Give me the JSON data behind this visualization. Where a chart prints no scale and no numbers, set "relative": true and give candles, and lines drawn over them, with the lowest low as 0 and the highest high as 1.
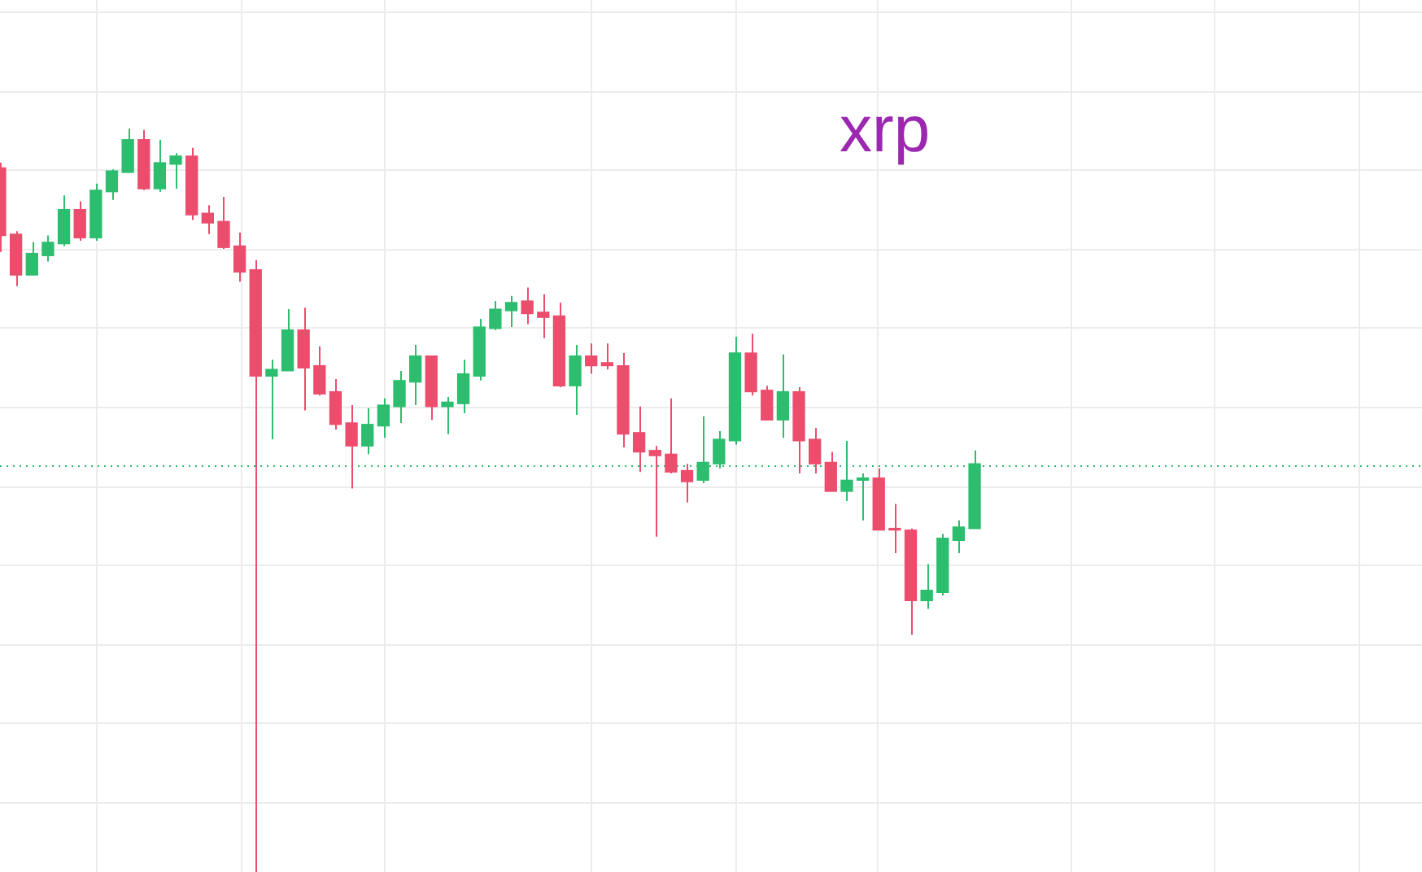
{
  "chart_data": {
    "type": "candlestick",
    "title": "xrp",
    "relative": true,
    "grid": true,
    "legend": false,
    "categories": [
      null,
      null,
      null,
      null,
      null,
      null,
      null,
      null,
      null,
      null,
      null,
      null,
      null,
      null,
      null,
      null,
      null,
      null,
      null,
      null,
      null,
      null,
      null,
      null,
      null,
      null,
      null,
      null,
      null,
      null,
      null,
      null,
      null,
      null,
      null,
      null,
      null,
      null,
      null,
      null,
      null,
      null,
      null,
      null,
      null,
      null,
      null,
      null,
      null,
      null,
      null,
      null,
      null,
      null,
      null,
      null,
      null,
      null,
      null,
      null,
      null,
      null,
      null,
      null,
      null,
      null,
      null,
      null,
      null,
      null,
      null,
      null,
      null,
      null,
      null,
      null,
      null,
      null,
      null,
      null,
      null,
      null,
      null,
      null,
      null,
      null,
      null,
      null,
      null,
      null
    ],
    "ohlc": [
      [
        0.947,
        0.954,
        0.834,
        0.856
      ],
      [
        0.858,
        0.862,
        0.788,
        0.803
      ],
      [
        0.803,
        0.847,
        0.803,
        0.832
      ],
      [
        0.829,
        0.856,
        0.821,
        0.847
      ],
      [
        0.845,
        0.91,
        0.842,
        0.891
      ],
      [
        0.891,
        0.902,
        0.849,
        0.853
      ],
      [
        0.853,
        0.926,
        0.849,
        0.917
      ],
      [
        0.915,
        0.945,
        0.904,
        0.943
      ],
      [
        0.941,
        1,
        0.941,
        0.985
      ],
      [
        0.985,
        0.998,
        0.917,
        0.919
      ],
      [
        0.919,
        0.985,
        0.915,
        0.954
      ],
      [
        0.952,
        0.967,
        0.919,
        0.963
      ],
      [
        0.963,
        0.974,
        0.877,
        0.884
      ],
      [
        0.886,
        0.897,
        0.858,
        0.873
      ],
      [
        0.875,
        0.908,
        0.838,
        0.84
      ],
      [
        0.842,
        0.86,
        0.794,
        0.807
      ],
      [
        0.81,
        0.823,
        0,
        0.667
      ],
      [
        0.667,
        0.689,
        0.582,
        0.676
      ],
      [
        0.674,
        0.757,
        0.674,
        0.729
      ],
      [
        0.729,
        0.759,
        0.621,
        0.678
      ],
      [
        0.681,
        0.707,
        0.641,
        0.643
      ],
      [
        0.646,
        0.663,
        0.595,
        0.602
      ],
      [
        0.604,
        0.628,
        0.516,
        0.573
      ],
      [
        0.573,
        0.624,
        0.562,
        0.602
      ],
      [
        0.6,
        0.637,
        0.584,
        0.628
      ],
      [
        0.626,
        0.674,
        0.604,
        0.661
      ],
      [
        0.659,
        0.709,
        0.628,
        0.694
      ],
      [
        0.694,
        0.694,
        0.608,
        0.626
      ],
      [
        0.626,
        0.639,
        0.589,
        0.632
      ],
      [
        0.63,
        0.689,
        0.617,
        0.67
      ],
      [
        0.667,
        0.744,
        0.661,
        0.733
      ],
      [
        0.731,
        0.768,
        0.729,
        0.757
      ],
      [
        0.755,
        0.775,
        0.733,
        0.766
      ],
      [
        0.768,
        0.786,
        0.737,
        0.751
      ],
      [
        0.753,
        0.777,
        0.718,
        0.746
      ],
      [
        0.748,
        0.766,
        0.652,
        0.654
      ],
      [
        0.654,
        0.709,
        0.615,
        0.694
      ],
      [
        0.694,
        0.711,
        0.67,
        0.681
      ],
      [
        0.685,
        0.711,
        0.676,
        0.681
      ],
      [
        0.681,
        0.698,
        0.571,
        0.589
      ],
      [
        0.591,
        0.626,
        0.538,
        0.565
      ],
      [
        0.567,
        0.573,
        0.451,
        0.56
      ],
      [
        0.562,
        0.637,
        0.536,
        0.538
      ],
      [
        0.54,
        0.549,
        0.497,
        0.525
      ],
      [
        0.527,
        0.613,
        0.523,
        0.551
      ],
      [
        0.549,
        0.593,
        0.543,
        0.582
      ],
      [
        0.58,
        0.72,
        0.575,
        0.698
      ],
      [
        0.698,
        0.724,
        0.641,
        0.646
      ],
      [
        0.648,
        0.654,
        0.608,
        0.608
      ],
      [
        0.608,
        0.696,
        0.584,
        0.646
      ],
      [
        0.646,
        0.652,
        0.536,
        0.58
      ],
      [
        0.582,
        0.597,
        0.536,
        0.549
      ],
      [
        0.551,
        0.565,
        0.512,
        0.512
      ],
      [
        0.512,
        0.58,
        0.499,
        0.527
      ],
      [
        0.527,
        0.536,
        0.473,
        0.53
      ],
      [
        0.53,
        0.543,
        0.46,
        0.46
      ],
      [
        0.462,
        0.495,
        0.429,
        0.46
      ],
      [
        0.46,
        0.462,
        0.319,
        0.365
      ],
      [
        0.365,
        0.414,
        0.354,
        0.379
      ],
      [
        0.376,
        0.455,
        0.372,
        0.449
      ],
      [
        0.446,
        0.473,
        0.429,
        0.464
      ],
      [
        0.462,
        0.567,
        0.462,
        0.549
      ],
      null,
      null,
      null,
      null,
      null,
      null,
      null,
      null,
      null,
      null,
      null,
      null,
      null,
      null,
      null,
      null,
      null,
      null,
      null,
      null,
      null,
      null,
      null,
      null,
      null,
      null,
      null,
      null
    ],
    "colors": [
      "#ec4d6d",
      "#ec4d6d",
      "#2dbd6e",
      "#2dbd6e",
      "#2dbd6e",
      "#ec4d6d",
      "#2dbd6e",
      "#2dbd6e",
      "#2dbd6e",
      "#ec4d6d",
      "#2dbd6e",
      "#2dbd6e",
      "#ec4d6d",
      "#ec4d6d",
      "#ec4d6d",
      "#ec4d6d",
      "#ec4d6d",
      "#2dbd6e",
      "#2dbd6e",
      "#ec4d6d",
      "#ec4d6d",
      "#ec4d6d",
      "#ec4d6d",
      "#2dbd6e",
      "#2dbd6e",
      "#2dbd6e",
      "#2dbd6e",
      "#ec4d6d",
      "#2dbd6e",
      "#2dbd6e",
      "#2dbd6e",
      "#2dbd6e",
      "#2dbd6e",
      "#ec4d6d",
      "#ec4d6d",
      "#ec4d6d",
      "#2dbd6e",
      "#ec4d6d",
      "#ec4d6d",
      "#ec4d6d",
      "#ec4d6d",
      "#ec4d6d",
      "#ec4d6d",
      "#ec4d6d",
      "#2dbd6e",
      "#2dbd6e",
      "#2dbd6e",
      "#ec4d6d",
      "#ec4d6d",
      "#2dbd6e",
      "#ec4d6d",
      "#ec4d6d",
      "#ec4d6d",
      "#2dbd6e",
      "#2dbd6e",
      "#ec4d6d",
      "#ec4d6d",
      "#ec4d6d",
      "#2dbd6e",
      "#2dbd6e",
      "#2dbd6e",
      "#2dbd6e",
      null,
      null,
      null,
      null,
      null,
      null,
      null,
      null,
      null,
      null,
      null,
      null,
      null,
      null,
      null,
      null,
      null,
      null,
      null,
      null,
      null,
      null,
      null,
      null,
      null,
      null,
      null,
      null
    ],
    "ref_lines": [
      {
        "axis": "y",
        "value": 0.547,
        "color": "#2dbd6e",
        "line_style": "dotted"
      }
    ]
  }
}
